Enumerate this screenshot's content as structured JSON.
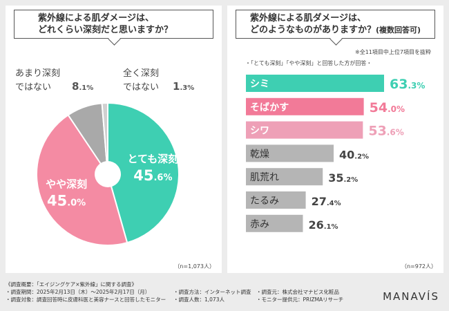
{
  "left": {
    "question_line1": "紫外線による肌ダメージは、",
    "question_line2": "どれくらい深刻だと思いますか？",
    "n_label": "（n=1,073人）"
  },
  "right": {
    "question_line1": "紫外線による肌ダメージは、",
    "question_line2": "どのようなものがありますか？",
    "question_suffix": "(複数回答可)",
    "note1": "※全11項目中上位7項目を抜粋",
    "note2": "・「とても深刻」「やや深刻」と回答した方が回答・",
    "n_label": "（n=972人）"
  },
  "chart_data": [
    {
      "type": "pie",
      "title": "紫外線による肌ダメージは、どれくらい深刻だと思いますか？",
      "unit": "%",
      "slices": [
        {
          "label": "とても深刻",
          "value": 45.6,
          "color": "#3ecfb2"
        },
        {
          "label": "やや深刻",
          "value": 45.0,
          "color": "#f48ba3"
        },
        {
          "label": "あまり深刻ではない",
          "value": 8.1,
          "color": "#a9a9a9"
        },
        {
          "label": "全く深刻ではない",
          "value": 1.3,
          "color": "#d0d0d0"
        }
      ]
    },
    {
      "type": "bar",
      "orientation": "horizontal",
      "title": "紫外線による肌ダメージは、どのようなものがありますか？(複数回答可)",
      "unit": "%",
      "xlim": [
        0,
        63.3
      ],
      "categories": [
        "シミ",
        "そばかす",
        "シワ",
        "乾燥",
        "肌荒れ",
        "たるみ",
        "赤み"
      ],
      "values": [
        63.3,
        54.0,
        53.6,
        40.2,
        35.2,
        27.4,
        26.1
      ],
      "colors": [
        "#3ecfb2",
        "#f27a98",
        "#eea0b7",
        "#b5b5b5",
        "#b5b5b5",
        "#b5b5b5",
        "#b5b5b5"
      ]
    }
  ],
  "footer": {
    "line1": "《調査概要：「エイジングケア×紫外線」に関する調査》",
    "period": "・調査期間：2025年2月13日（木）～2025年2月17日（月）",
    "method": "・調査方法：インターネット調査",
    "sponsor": "・調査元：株式会社マナビス化粧品",
    "target": "・調査対象：調査回答時に皮膚科医と美容ナースと回答したモニター",
    "count": "・調査人数：1,073人",
    "provider": "・モニター提供元：PRIZMAリサーチ"
  },
  "brand": {
    "logo": "MANAVÍS"
  }
}
